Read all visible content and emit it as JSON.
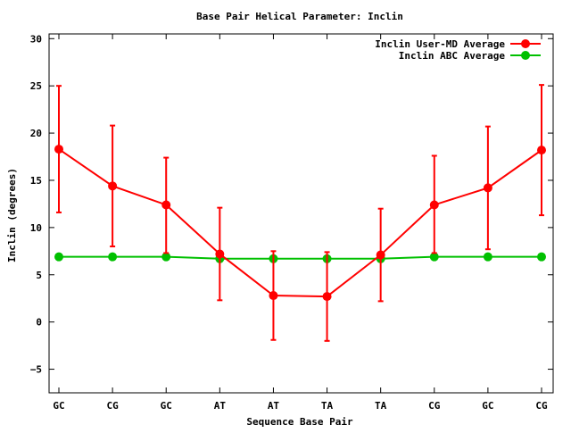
{
  "chart_data": {
    "type": "line",
    "title": "Base Pair Helical Parameter: Inclin",
    "xlabel": "Sequence Base Pair",
    "ylabel": "Inclin (degrees)",
    "categories": [
      "GC",
      "CG",
      "GC",
      "AT",
      "AT",
      "TA",
      "TA",
      "CG",
      "GC",
      "CG"
    ],
    "ylim": [
      -7.5,
      30.5
    ],
    "yticks": [
      -5,
      0,
      5,
      10,
      15,
      20,
      25,
      30
    ],
    "ytick_labels": [
      "−5",
      "0",
      "5",
      "10",
      "15",
      "20",
      "25",
      "30"
    ],
    "grid": false,
    "legend_position": "top-right",
    "series": [
      {
        "name": "Inclin User-MD Average",
        "color": "#ff0000",
        "values": [
          18.3,
          14.4,
          12.4,
          7.2,
          2.8,
          2.7,
          7.1,
          12.4,
          14.2,
          18.2
        ],
        "error_low": [
          11.6,
          8.0,
          7.3,
          2.3,
          -1.9,
          -2.0,
          2.2,
          7.3,
          7.7,
          11.3
        ],
        "error_high": [
          25.0,
          20.8,
          17.4,
          12.1,
          7.5,
          7.4,
          12.0,
          17.6,
          20.7,
          25.1
        ]
      },
      {
        "name": "Inclin ABC Average",
        "color": "#00c000",
        "values": [
          6.9,
          6.9,
          6.9,
          6.7,
          6.7,
          6.7,
          6.7,
          6.9,
          6.9,
          6.9
        ]
      }
    ]
  }
}
